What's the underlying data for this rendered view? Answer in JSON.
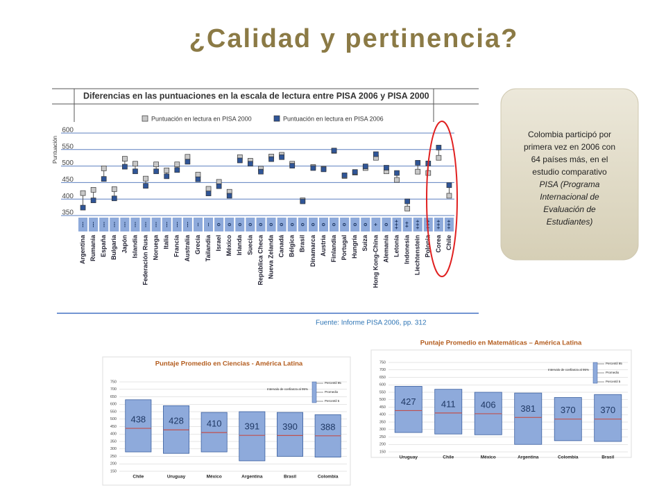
{
  "slide": {
    "title": "¿Calidad y pertinencia?",
    "note_text": [
      "Colombia  participó por",
      "primera vez en 2006 con",
      "64 países más,  en el",
      "estudio comparativo"
    ],
    "note_italic": [
      "PISA (Programa",
      "Internacional de",
      "Evaluación de",
      "Estudiantes)"
    ],
    "source": "Fuente: Informe PISA 2006, pp. 312"
  },
  "chart_data": [
    {
      "type": "dot",
      "title": "Diferencias en las puntuaciones en la escala de lectura entre PISA 2006 y PISA 2000",
      "ylabel": "Puntuación",
      "categories": [
        "Argentina",
        "Rumania",
        "España",
        "Bulgaria",
        "Japón",
        "Islandia",
        "Federación Rusa",
        "Noruega",
        "Italia",
        "Francia",
        "Australia",
        "Grecia",
        "Tailandia",
        "Israel",
        "México",
        "Irlanda",
        "Suecia",
        "República Checa",
        "Nueva Zelanda",
        "Canadá",
        "Bélgica",
        "Brasil",
        "Dinamarca",
        "Austria",
        "Finlandia",
        "Portugal",
        "Hungría",
        "Suiza",
        "Hong Kong-China",
        "Alemania",
        "Letonia",
        "Indonesia",
        "Liechtenstein",
        "Polonia",
        "Corea",
        "Chile"
      ],
      "significance": [
        "---",
        "---",
        "---",
        "---",
        "---",
        "---",
        "---",
        "---",
        "---",
        "---",
        "---",
        "--",
        "--",
        "o",
        "o",
        "o",
        "o",
        "o",
        "o",
        "o",
        "o",
        "o",
        "o",
        "o",
        "o",
        "o",
        "o",
        "o",
        "+",
        "o",
        "+++",
        "++",
        "+++",
        "+++",
        "+++",
        "+++"
      ],
      "series": [
        {
          "name": "Puntuación en lectura en PISA 2000",
          "color": "#c8c8c8",
          "values": [
            418,
            428,
            493,
            430,
            522,
            507,
            462,
            505,
            487,
            505,
            528,
            474,
            431,
            452,
            422,
            527,
            516,
            492,
            529,
            534,
            507,
            396,
            497,
            492,
            546,
            470,
            480,
            494,
            525,
            484,
            458,
            371,
            483,
            479,
            525,
            410
          ]
        },
        {
          "name": "Puntuación en lectura en PISA 2006",
          "color": "#2f5597",
          "values": [
            374,
            396,
            461,
            402,
            498,
            484,
            440,
            484,
            469,
            488,
            513,
            460,
            417,
            439,
            410,
            517,
            507,
            483,
            521,
            527,
            501,
            393,
            494,
            490,
            547,
            472,
            482,
            499,
            536,
            495,
            479,
            393,
            510,
            508,
            556,
            442
          ]
        }
      ],
      "ylim": [
        350,
        600
      ],
      "yticks": [
        350,
        400,
        450,
        500,
        550,
        600
      ],
      "grid": true
    },
    {
      "type": "box",
      "title": "Puntaje Promedio en Ciencias - América Latina",
      "categories": [
        "Chile",
        "Uruguay",
        "México",
        "Argentina",
        "Brasil",
        "Colombia"
      ],
      "values": [
        438,
        428,
        410,
        391,
        390,
        388
      ],
      "p95": [
        630,
        590,
        545,
        550,
        545,
        530
      ],
      "p5": [
        280,
        270,
        280,
        220,
        250,
        245
      ],
      "legend_labels": [
        "Intervalo de confianza al 95%",
        "Percentil 95",
        "Promedio",
        "Percentil 5"
      ],
      "ylim": [
        150,
        750
      ],
      "yticks": [
        150,
        200,
        250,
        300,
        350,
        400,
        450,
        500,
        550,
        600,
        650,
        700,
        750
      ],
      "grid": true
    },
    {
      "type": "box",
      "title": "Puntaje Promedio en Matemáticas – América Latina",
      "categories": [
        "Uruguay",
        "Chile",
        "México",
        "Argentina",
        "Colombia",
        "Brasil"
      ],
      "values": [
        427,
        411,
        406,
        381,
        370,
        370
      ],
      "p95": [
        590,
        570,
        550,
        545,
        515,
        535
      ],
      "p5": [
        280,
        270,
        265,
        200,
        225,
        220
      ],
      "legend_labels": [
        "Intervalo de confianza al 95%",
        "Percentil 95",
        "Promedio",
        "Percentil 5"
      ],
      "ylim": [
        150,
        750
      ],
      "yticks": [
        150,
        200,
        250,
        300,
        350,
        400,
        450,
        500,
        550,
        600,
        650,
        700,
        750
      ],
      "grid": true
    }
  ]
}
